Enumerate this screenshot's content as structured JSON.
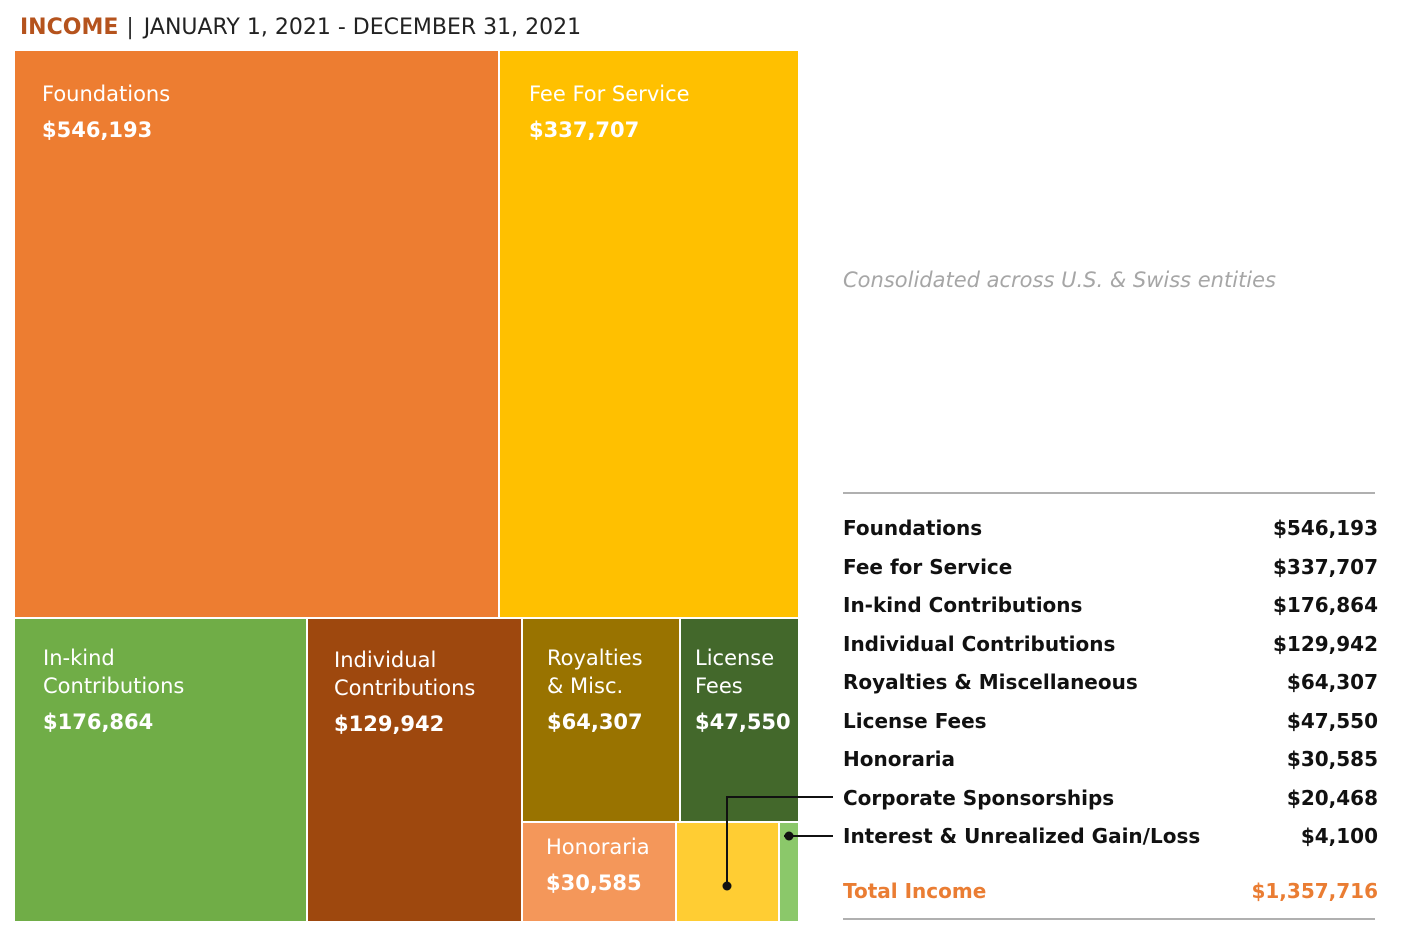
{
  "header": {
    "label": "INCOME",
    "separator": "|",
    "date_range": "JANUARY 1, 2021 - DECEMBER 31, 2021"
  },
  "note": "Consolidated across U.S. & Swiss entities",
  "colors": {
    "header_accent": "#b5531d",
    "total": "#ea7d33",
    "note": "#a6a6a6"
  },
  "chart_data": {
    "type": "treemap",
    "items": [
      {
        "label": "Foundations",
        "value": 546193,
        "value_label": "$546,193",
        "color": "#ed7d31"
      },
      {
        "label": "Fee For Service",
        "value": 337707,
        "value_label": "$337,707",
        "color": "#ffc000"
      },
      {
        "label": "In-kind Contributions",
        "lines": [
          "In-kind",
          "Contributions"
        ],
        "value": 176864,
        "value_label": "$176,864",
        "color": "#70ad47"
      },
      {
        "label": "Individual Contributions",
        "lines": [
          "Individual",
          "Contributions"
        ],
        "value": 129942,
        "value_label": "$129,942",
        "color": "#9e480e"
      },
      {
        "label": "Royalties & Misc.",
        "lines": [
          "Royalties",
          "& Misc."
        ],
        "value": 64307,
        "value_label": "$64,307",
        "color": "#997300"
      },
      {
        "label": "License Fees",
        "lines": [
          "License",
          "Fees"
        ],
        "value": 47550,
        "value_label": "$47,550",
        "color": "#43682b"
      },
      {
        "label": "Honoraria",
        "value": 30585,
        "value_label": "$30,585",
        "color": "#f4975a"
      },
      {
        "label": "",
        "value": 20468,
        "value_label": "",
        "color": "#ffcd33"
      },
      {
        "label": "",
        "value": 4100,
        "value_label": "",
        "color": "#8bc86a"
      }
    ]
  },
  "table": {
    "rows": [
      {
        "label": "Foundations",
        "value": "$546,193"
      },
      {
        "label": "Fee for Service",
        "value": "$337,707"
      },
      {
        "label": "In-kind Contributions",
        "value": "$176,864"
      },
      {
        "label": "Individual Contributions",
        "value": "$129,942"
      },
      {
        "label": "Royalties & Miscellaneous",
        "value": "$64,307"
      },
      {
        "label": "License Fees",
        "value": "$47,550"
      },
      {
        "label": "Honoraria",
        "value": "$30,585"
      },
      {
        "label": "Corporate Sponsorships",
        "value": "$20,468"
      },
      {
        "label": "Interest & Unrealized Gain/Loss",
        "value": "$4,100"
      }
    ],
    "total": {
      "label": "Total Income",
      "value": "$1,357,716"
    }
  }
}
